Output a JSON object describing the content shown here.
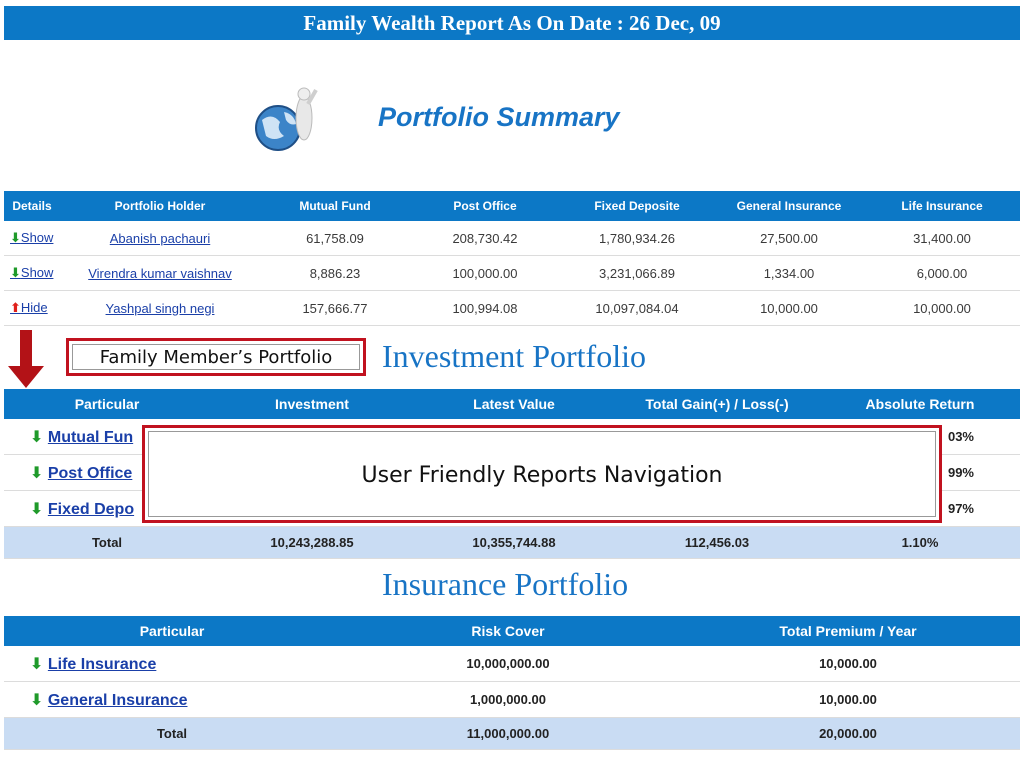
{
  "header": {
    "title": "Family Wealth Report As On Date : 26 Dec, 09"
  },
  "summary": {
    "title": "Portfolio Summary",
    "columns": [
      "Details",
      "Portfolio Holder",
      "Mutual Fund",
      "Post Office",
      "Fixed Deposite",
      "General Insurance",
      "Life Insurance"
    ],
    "rows": [
      {
        "action": "Show",
        "holder": "Abanish pachauri",
        "mutual_fund": "61,758.09",
        "post_office": "208,730.42",
        "fixed_deposite": "1,780,934.26",
        "general_insurance": "27,500.00",
        "life_insurance": "31,400.00"
      },
      {
        "action": "Show",
        "holder": "Virendra kumar vaishnav",
        "mutual_fund": "8,886.23",
        "post_office": "100,000.00",
        "fixed_deposite": "3,231,066.89",
        "general_insurance": "1,334.00",
        "life_insurance": "6,000.00"
      },
      {
        "action": "Hide",
        "holder": "Yashpal singh negi",
        "mutual_fund": "157,666.77",
        "post_office": "100,994.08",
        "fixed_deposite": "10,097,084.04",
        "general_insurance": "10,000.00",
        "life_insurance": "10,000.00"
      }
    ]
  },
  "callouts": {
    "family_member": "Family Member’s Portfolio",
    "navigation": "User Friendly Reports Navigation"
  },
  "investment": {
    "title": "Investment Portfolio",
    "columns": [
      "Particular",
      "Investment",
      "Latest Value",
      "Total Gain(+) / Loss(-)",
      "Absolute Return"
    ],
    "rows": [
      {
        "particular": "Mutual Fun",
        "return_partial": "03%"
      },
      {
        "particular": "Post Office",
        "return_partial": "99%"
      },
      {
        "particular": "Fixed Depo",
        "return_partial": "97%"
      }
    ],
    "total": {
      "label": "Total",
      "investment": "10,243,288.85",
      "latest_value": "10,355,744.88",
      "gain": "112,456.03",
      "return": "1.10%"
    }
  },
  "insurance": {
    "title": "Insurance Portfolio",
    "columns": [
      "Particular",
      "Risk Cover",
      "Total Premium / Year"
    ],
    "rows": [
      {
        "particular": "Life Insurance",
        "risk_cover": "10,000,000.00",
        "premium": "10,000.00"
      },
      {
        "particular": "General Insurance",
        "risk_cover": "1,000,000.00",
        "premium": "10,000.00"
      }
    ],
    "total": {
      "label": "Total",
      "risk_cover": "11,000,000.00",
      "premium": "20,000.00"
    }
  },
  "colors": {
    "header_blue": "#0c78c6",
    "title_blue": "#1874c5",
    "callout_red": "#c1121f",
    "total_row": "#c9dcf3"
  },
  "icons": {
    "show": "green-down-arrow-icon",
    "hide": "red-up-arrow-icon",
    "expand": "green-down-arrow-icon",
    "summary": "globe-figure-icon"
  }
}
